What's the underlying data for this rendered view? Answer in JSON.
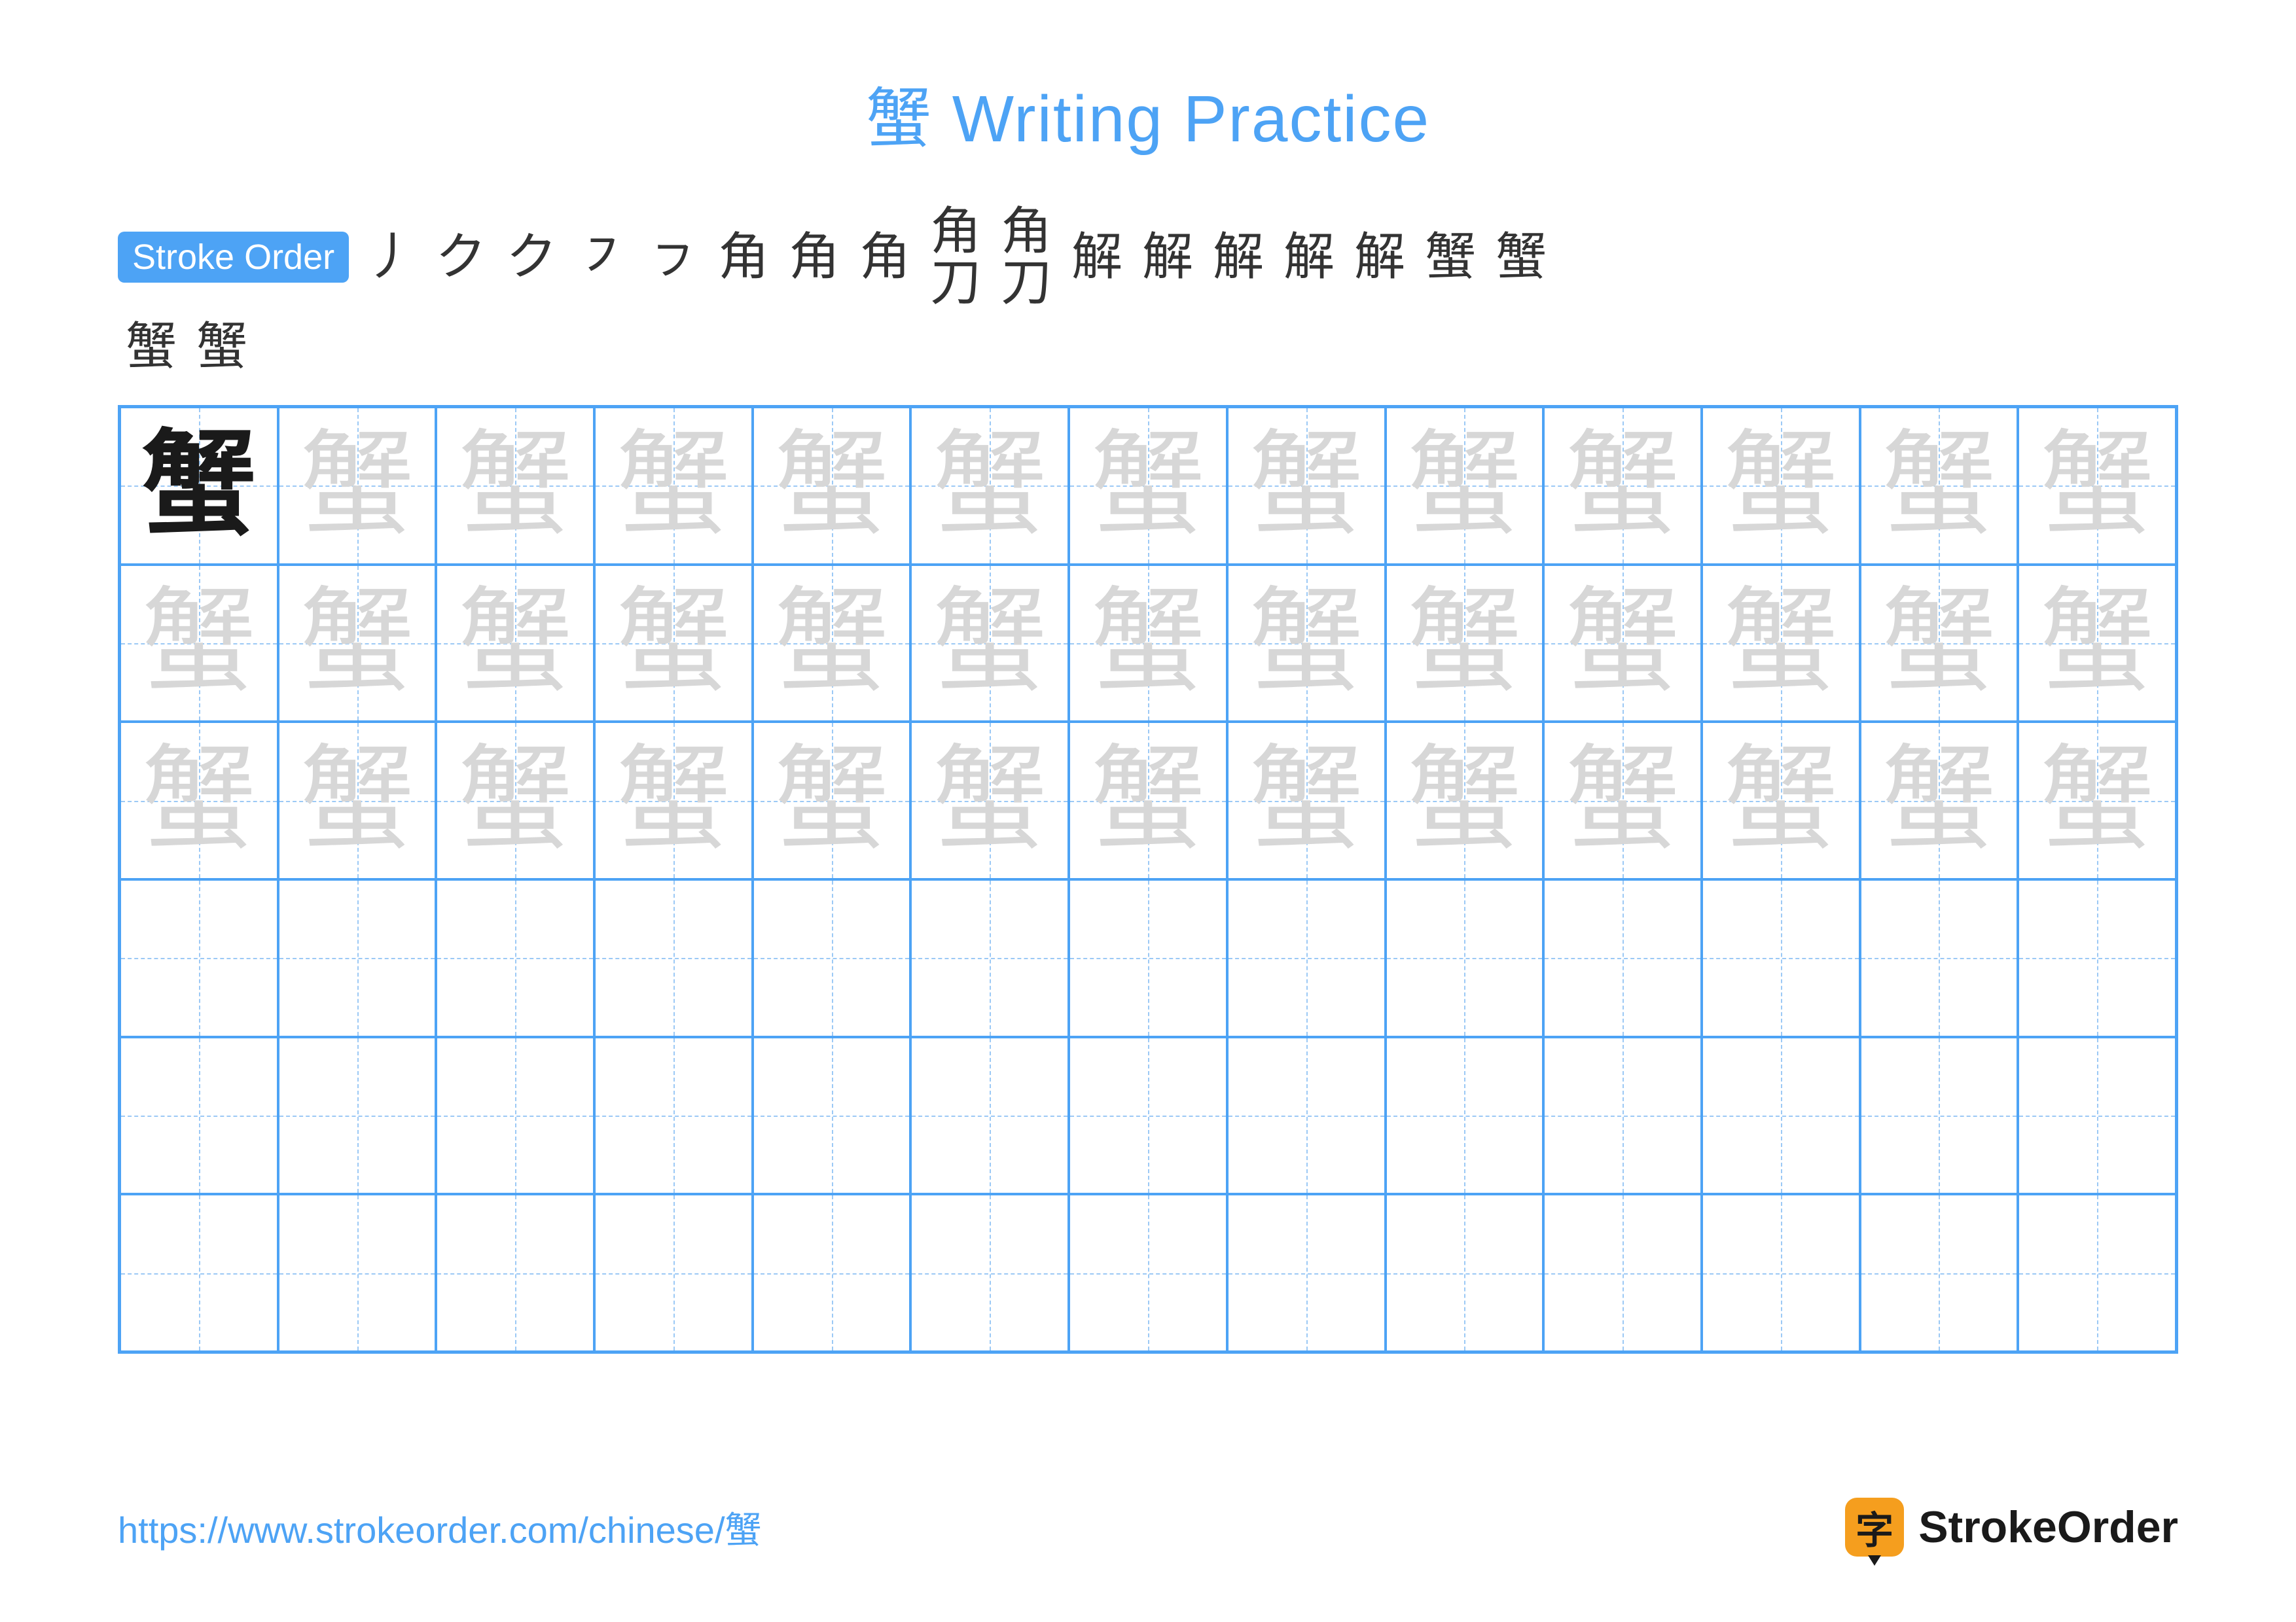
{
  "title": "蟹 Writing Practice",
  "strokeOrder": {
    "label": "Stroke Order",
    "row1": [
      "丿",
      "ク",
      "ク",
      "㇇",
      "ㇷ",
      "角",
      "角",
      "角",
      "角刀",
      "角刀",
      "解",
      "解",
      "解",
      "解",
      "解",
      "蟹",
      "蟹"
    ],
    "row2": [
      "蟹",
      "蟹"
    ]
  },
  "grid": {
    "rows": 6,
    "cols": 13,
    "character": "蟹",
    "modelCell": {
      "row": 0,
      "col": 0
    },
    "traceRows": [
      0,
      1,
      2
    ],
    "emptyRows": [
      3,
      4,
      5
    ],
    "colors": {
      "border": "#4da3f5",
      "dash": "#9cc9f5",
      "model": "#1a1a1a",
      "trace": "#d7d7d7",
      "background": "#ffffff"
    },
    "cell_font_size": 175
  },
  "footer": {
    "url": "https://www.strokeorder.com/chinese/蟹",
    "brandIcon": "字",
    "brandText": "StrokeOrder"
  },
  "colors": {
    "accent": "#4da3f5",
    "text": "#1a1a1a",
    "brandIconBg": "#f59e1e"
  }
}
